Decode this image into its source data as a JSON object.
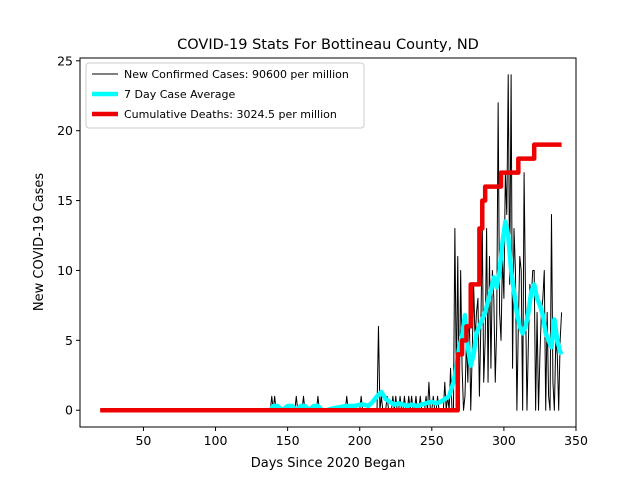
{
  "chart_data": {
    "type": "line",
    "title": "COVID-19 Stats For Bottineau County, ND",
    "xlabel": "Days Since 2020 Began",
    "ylabel": "New COVID-19 Cases",
    "xlim": [
      6,
      350
    ],
    "ylim": [
      -1.2,
      25.2
    ],
    "xticks": [
      50,
      100,
      150,
      200,
      250,
      300,
      350
    ],
    "yticks": [
      0,
      5,
      10,
      15,
      20,
      25
    ],
    "grid": false,
    "legend_position": "top-left",
    "series": [
      {
        "name": "New Confirmed Cases: 90600 per million",
        "color": "#000000",
        "style": "thin",
        "x": [
          20,
          138,
          139,
          140,
          141,
          142,
          143,
          144,
          150,
          155,
          156,
          157,
          160,
          161,
          162,
          170,
          171,
          172,
          185,
          190,
          191,
          192,
          200,
          201,
          202,
          205,
          210,
          212,
          213,
          214,
          215,
          216,
          217,
          218,
          219,
          220,
          221,
          222,
          223,
          224,
          225,
          226,
          227,
          228,
          229,
          230,
          231,
          232,
          233,
          234,
          235,
          236,
          237,
          238,
          239,
          240,
          241,
          242,
          243,
          244,
          245,
          246,
          247,
          248,
          249,
          250,
          251,
          252,
          253,
          254,
          255,
          256,
          257,
          258,
          259,
          260,
          261,
          262,
          263,
          264,
          265,
          266,
          267,
          268,
          269,
          270,
          271,
          272,
          273,
          274,
          275,
          276,
          277,
          278,
          279,
          280,
          281,
          282,
          283,
          284,
          285,
          286,
          287,
          288,
          289,
          290,
          291,
          292,
          293,
          294,
          295,
          296,
          297,
          298,
          299,
          300,
          301,
          302,
          303,
          304,
          305,
          306,
          307,
          308,
          309,
          310,
          311,
          312,
          313,
          314,
          315,
          316,
          317,
          318,
          319,
          320,
          321,
          322,
          323,
          324,
          325,
          326,
          327,
          328,
          329,
          330,
          331,
          332,
          333,
          334,
          335,
          336,
          337,
          338,
          339,
          340
        ],
        "y": [
          0,
          0,
          1,
          0,
          1,
          0,
          0,
          0,
          0,
          0,
          1,
          0,
          0,
          1,
          0,
          0,
          1,
          0,
          0,
          0,
          1,
          0,
          0,
          1,
          0,
          0,
          0,
          0,
          6,
          0,
          1,
          0,
          0,
          0,
          1,
          0,
          0,
          0,
          1,
          0,
          1,
          0,
          0,
          1,
          0,
          0,
          1,
          0,
          0,
          1,
          0,
          1,
          0,
          0,
          1,
          0,
          0,
          1,
          0,
          0,
          0,
          1,
          0,
          2,
          0,
          0,
          1,
          0,
          0,
          1,
          0,
          0,
          0,
          0,
          2,
          0,
          1,
          0,
          3,
          0,
          0,
          13,
          2,
          11,
          0,
          10,
          3,
          0,
          1,
          5,
          2,
          7,
          0,
          4,
          9,
          5,
          7,
          8,
          1,
          6,
          13,
          2,
          5,
          13,
          2,
          11,
          3,
          10,
          8,
          2,
          6,
          22,
          7,
          5,
          11,
          8,
          17,
          14,
          24,
          9,
          24,
          3,
          13,
          10,
          0,
          6,
          11,
          10,
          0,
          17,
          8,
          0,
          5,
          9,
          8,
          10,
          10,
          0,
          7,
          0,
          4,
          7,
          8,
          10,
          0,
          7,
          1,
          0,
          14,
          2,
          0,
          5,
          4,
          0,
          5,
          7
        ]
      },
      {
        "name": "7 Day Case Average",
        "color": "#00ffff",
        "style": "thick",
        "x": [
          138,
          140,
          143,
          146,
          150,
          153,
          156,
          159,
          162,
          165,
          168,
          171,
          174,
          177,
          180,
          185,
          190,
          193,
          196,
          200,
          203,
          206,
          209,
          212,
          215,
          218,
          221,
          224,
          227,
          230,
          233,
          236,
          240,
          243,
          246,
          250,
          253,
          256,
          259,
          262,
          265,
          267,
          269,
          271,
          273,
          275,
          277,
          279,
          281,
          283,
          285,
          287,
          289,
          291,
          293,
          295,
          297,
          299,
          301,
          303,
          305,
          307,
          309,
          311,
          313,
          315,
          317,
          319,
          321,
          323,
          325,
          327,
          329,
          331,
          333,
          335,
          337,
          339,
          340
        ],
        "y": [
          0,
          0.3,
          0.3,
          0,
          0.3,
          0.3,
          0,
          0.3,
          0.3,
          0,
          0.3,
          0.3,
          0,
          0,
          0.1,
          0.2,
          0.3,
          0.3,
          0.3,
          0.4,
          0.4,
          0.3,
          0.6,
          1.0,
          1.3,
          0.8,
          0.6,
          0.4,
          0.5,
          0.4,
          0.3,
          0.4,
          0.3,
          0.4,
          0.5,
          0.6,
          0.5,
          0.6,
          0.8,
          1.0,
          2.0,
          3.0,
          4.5,
          5.3,
          6.8,
          4.5,
          3.2,
          4.0,
          5.5,
          6.0,
          6.5,
          7.0,
          7.8,
          8.6,
          9.5,
          8.8,
          10.0,
          12.0,
          13.5,
          12.5,
          10.0,
          8.5,
          7.0,
          6.0,
          5.5,
          6.0,
          7.0,
          8.5,
          9.0,
          8.0,
          7.5,
          6.8,
          5.5,
          5.0,
          4.5,
          6.5,
          5.0,
          4.2,
          4.0
        ]
      },
      {
        "name": "Cumulative Deaths: 3024.5 per million",
        "color": "#ee0000",
        "style": "thick",
        "x": [
          20,
          265,
          268,
          268,
          271,
          271,
          274,
          274,
          277,
          277,
          279,
          279,
          283,
          283,
          285,
          285,
          287,
          287,
          290,
          290,
          298,
          298,
          305,
          305,
          310,
          310,
          321,
          321,
          340
        ],
        "y": [
          0,
          0,
          0,
          4,
          4,
          5,
          5,
          6,
          6,
          9,
          9,
          9,
          9,
          13,
          13,
          15,
          15,
          16,
          16,
          16,
          16,
          17,
          17,
          17,
          17,
          18,
          18,
          19,
          19
        ]
      }
    ]
  }
}
